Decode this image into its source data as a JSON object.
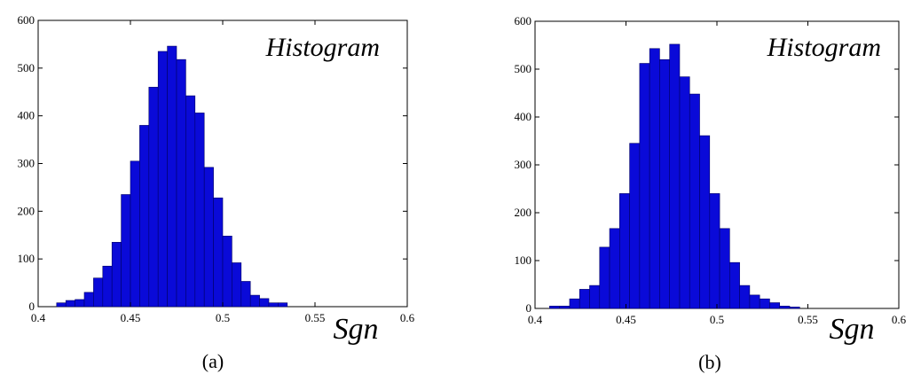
{
  "chart_data": [
    {
      "type": "bar",
      "title": "Histogram",
      "xlabel": "Sgn",
      "ylabel": "",
      "caption": "(a)",
      "xlim": [
        0.4,
        0.6
      ],
      "ylim": [
        0,
        600
      ],
      "xticks": [
        "0.4",
        "0.45",
        "0.5",
        "0.55",
        "0.6"
      ],
      "yticks": [
        "0",
        "100",
        "200",
        "300",
        "400",
        "500",
        "600"
      ],
      "bar_color": "#0a0ad8",
      "bin_start": 0.41,
      "bin_width": 0.005,
      "values": [
        8,
        13,
        15,
        30,
        60,
        85,
        135,
        235,
        305,
        380,
        460,
        535,
        546,
        518,
        442,
        406,
        292,
        228,
        148,
        92,
        53,
        24,
        17,
        8,
        8
      ]
    },
    {
      "type": "bar",
      "title": "Histogram",
      "xlabel": "Sgn",
      "ylabel": "",
      "caption": "(b)",
      "xlim": [
        0.4,
        0.6
      ],
      "ylim": [
        0,
        600
      ],
      "xticks": [
        "0.4",
        "0.45",
        "0.5",
        "0.55",
        "0.6"
      ],
      "yticks": [
        "0",
        "100",
        "200",
        "300",
        "400",
        "500",
        "600"
      ],
      "bar_color": "#0a0ad8",
      "bin_start": 0.408,
      "bin_width": 0.0055,
      "values": [
        5,
        5,
        20,
        40,
        48,
        128,
        167,
        240,
        345,
        512,
        543,
        520,
        552,
        484,
        448,
        361,
        240,
        167,
        96,
        48,
        28,
        20,
        12,
        5,
        3
      ]
    }
  ]
}
